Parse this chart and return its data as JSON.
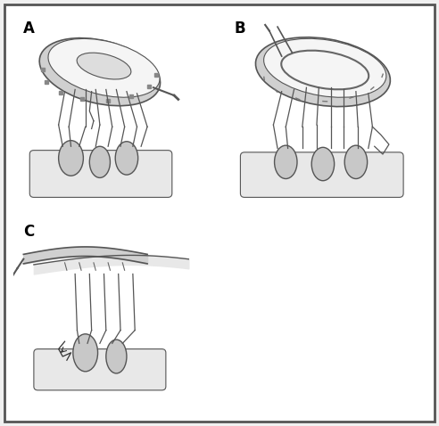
{
  "figure_width": 4.92,
  "figure_height": 4.78,
  "dpi": 100,
  "bg_color": "#f0f0f0",
  "border_color": "#555555",
  "panel_bg": "#ffffff",
  "label_A": "A",
  "label_B": "B",
  "label_C": "C",
  "label_fontsize": 12,
  "label_fontweight": "bold",
  "tissue_color_light": "#e8e8e8",
  "tissue_color_mid": "#c8c8c8",
  "tissue_color_dark": "#a0a0a0",
  "line_color": "#555555",
  "outline_color": "#333333",
  "suture_color": "#333333",
  "valve_white": "#f5f5f5",
  "valve_shadow": "#d0d0d0"
}
